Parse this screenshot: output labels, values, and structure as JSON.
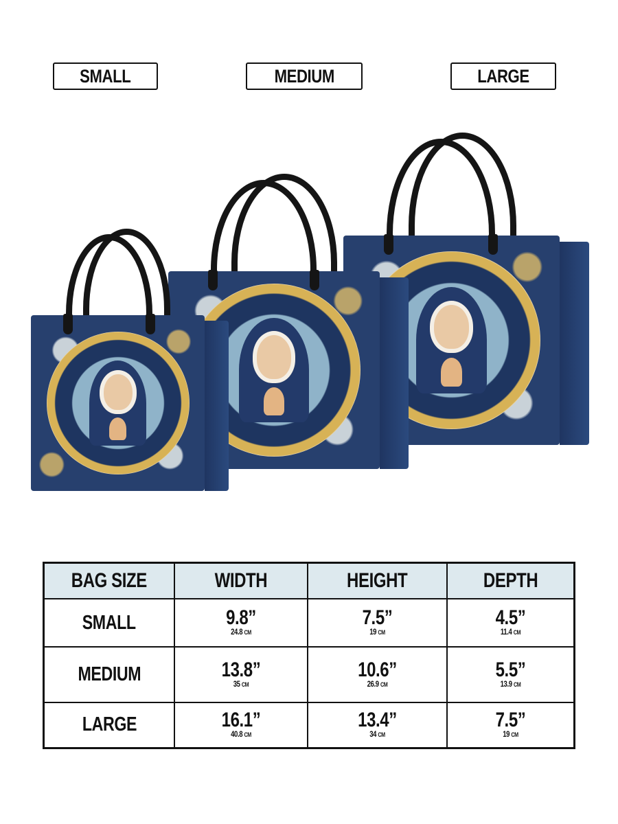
{
  "size_labels": [
    "SMALL",
    "MEDIUM",
    "LARGE"
  ],
  "colors": {
    "bag_body": "#27406e",
    "handle": "#151515",
    "gold": "#d7b256",
    "table_header_bg": "#dde9ee"
  },
  "table": {
    "headers": [
      "BAG SIZE",
      "WIDTH",
      "HEIGHT",
      "DEPTH"
    ],
    "rows": [
      {
        "size": "SMALL",
        "width": {
          "in": "9.8”",
          "cm": "24.8",
          "unit": "CM"
        },
        "height": {
          "in": "7.5”",
          "cm": "19",
          "unit": "CM"
        },
        "depth": {
          "in": "4.5”",
          "cm": "11.4",
          "unit": "CM"
        }
      },
      {
        "size": "MEDIUM",
        "width": {
          "in": "13.8”",
          "cm": "35",
          "unit": "CM"
        },
        "height": {
          "in": "10.6”",
          "cm": "26.9",
          "unit": "CM"
        },
        "depth": {
          "in": "5.5”",
          "cm": "13.9",
          "unit": "CM"
        }
      },
      {
        "size": "LARGE",
        "width": {
          "in": "16.1”",
          "cm": "40.8",
          "unit": "CM"
        },
        "height": {
          "in": "13.4”",
          "cm": "34",
          "unit": "CM"
        },
        "depth": {
          "in": "7.5”",
          "cm": "19",
          "unit": "CM"
        }
      }
    ]
  }
}
